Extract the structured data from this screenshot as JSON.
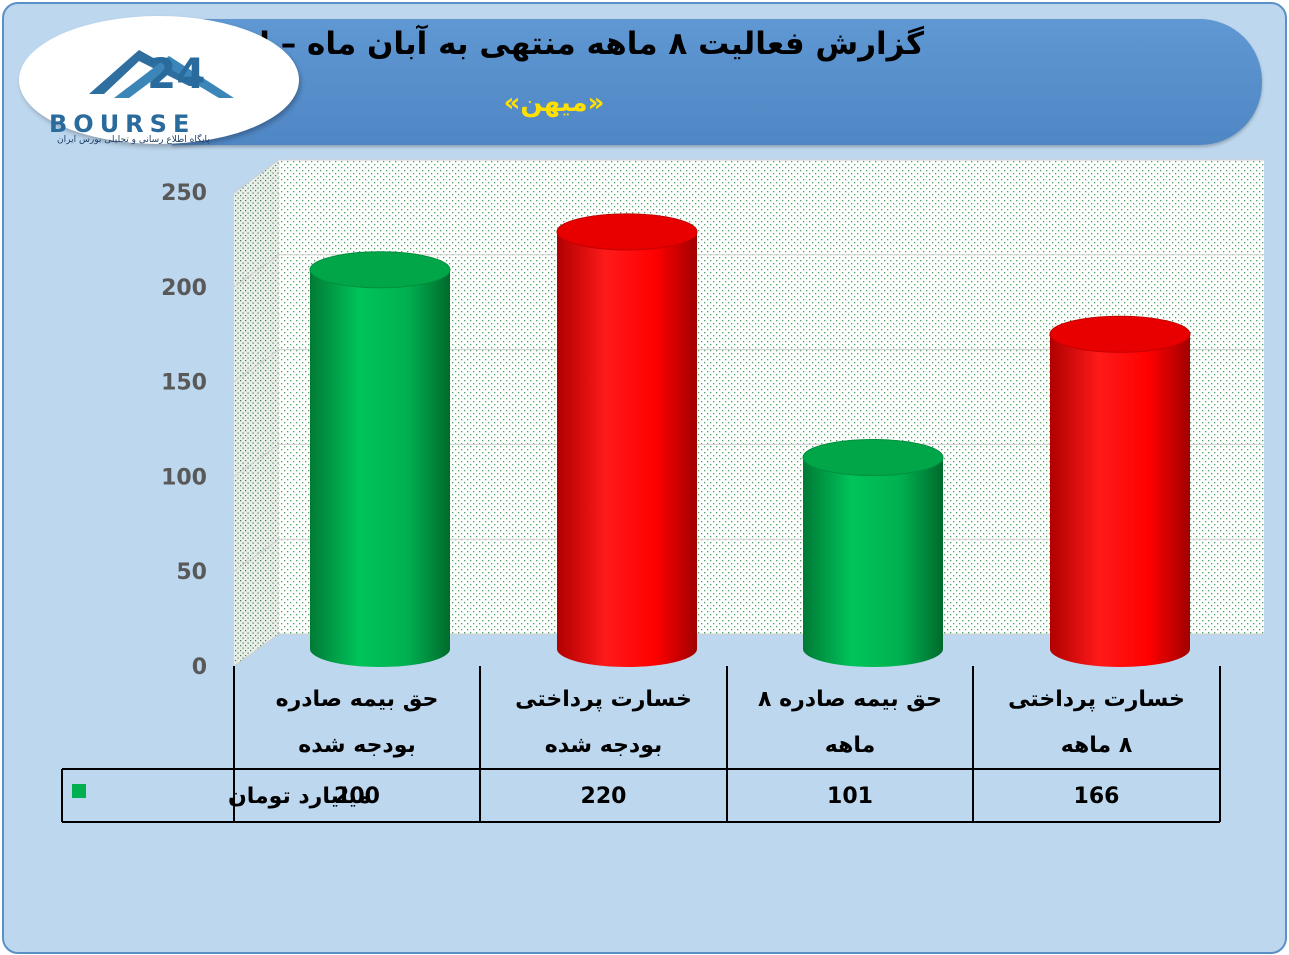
{
  "header": {
    "title": "گزارش فعالیت ۸ ماهه منتهی به آبان ماه – اصلاحیه",
    "subtitle": "«میهن»"
  },
  "logo": {
    "wordmark": "BOURSE",
    "tagline": "پایگاه اطلاع رسانی و تحلیلی بورس ایران"
  },
  "colors": {
    "green": "#00b050",
    "red": "#ff0000",
    "background": "#bdd7ee",
    "header": "#5b9bd5",
    "subtitle": "#ffe000"
  },
  "chart_data": {
    "type": "bar",
    "style": "3d-cylinder",
    "categories": [
      [
        "حق بیمه صادره",
        "بودجه شده"
      ],
      [
        "خسارت پرداختی",
        "بودجه شده"
      ],
      [
        "حق بیمه صادره ۸",
        "ماهه"
      ],
      [
        "خسارت پرداختی",
        "۸ ماهه"
      ]
    ],
    "values": [
      200,
      220,
      101,
      166
    ],
    "bar_colors": [
      "green",
      "red",
      "green",
      "red"
    ],
    "series": [
      {
        "name": "میلیارد تومان",
        "values": [
          200,
          220,
          101,
          166
        ]
      }
    ],
    "ylim": [
      0,
      250
    ],
    "yticks": [
      0,
      50,
      100,
      150,
      200,
      250
    ],
    "grid": true,
    "legend": "data-table",
    "data_table": {
      "row_label": "میلیارد تومان",
      "values": [
        "200",
        "220",
        "101",
        "166"
      ]
    }
  }
}
